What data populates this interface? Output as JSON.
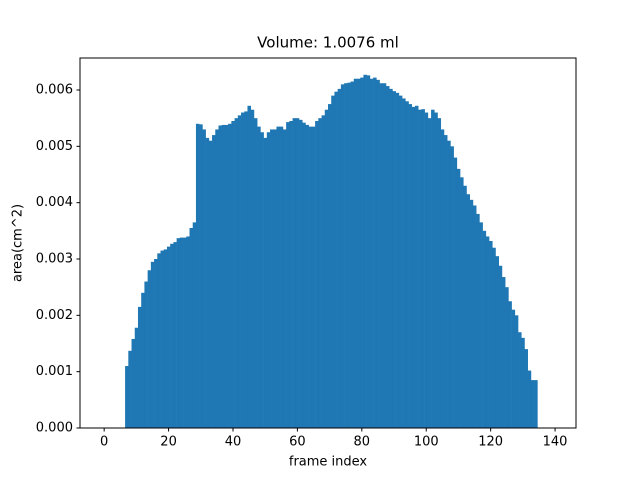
{
  "chart_data": {
    "type": "bar",
    "title": "Volume: 1.0076 ml",
    "xlabel": "frame index",
    "ylabel": "area(cm^2)",
    "color": "#1f77b4",
    "x": [
      0,
      1,
      2,
      3,
      4,
      5,
      6,
      7,
      8,
      9,
      10,
      11,
      12,
      13,
      14,
      15,
      16,
      17,
      18,
      19,
      20,
      21,
      22,
      23,
      24,
      25,
      26,
      27,
      28,
      29,
      30,
      31,
      32,
      33,
      34,
      35,
      36,
      37,
      38,
      39,
      40,
      41,
      42,
      43,
      44,
      45,
      46,
      47,
      48,
      49,
      50,
      51,
      52,
      53,
      54,
      55,
      56,
      57,
      58,
      59,
      60,
      61,
      62,
      63,
      64,
      65,
      66,
      67,
      68,
      69,
      70,
      71,
      72,
      73,
      74,
      75,
      76,
      77,
      78,
      79,
      80,
      81,
      82,
      83,
      84,
      85,
      86,
      87,
      88,
      89,
      90,
      91,
      92,
      93,
      94,
      95,
      96,
      97,
      98,
      99,
      100,
      101,
      102,
      103,
      104,
      105,
      106,
      107,
      108,
      109,
      110,
      111,
      112,
      113,
      114,
      115,
      116,
      117,
      118,
      119,
      120,
      121,
      122,
      123,
      124,
      125,
      126,
      127,
      128,
      129,
      130,
      131,
      132,
      133,
      134,
      135,
      136,
      137,
      138,
      139
    ],
    "values": [
      0,
      0,
      0,
      0,
      0,
      0,
      0,
      0.0011,
      0.00137,
      0.00158,
      0.00178,
      0.00215,
      0.0024,
      0.0026,
      0.0028,
      0.00295,
      0.003,
      0.0031,
      0.00315,
      0.00317,
      0.00322,
      0.00327,
      0.0033,
      0.00337,
      0.00338,
      0.00338,
      0.0034,
      0.00355,
      0.00365,
      0.0054,
      0.00539,
      0.0053,
      0.00515,
      0.0051,
      0.0052,
      0.0053,
      0.00537,
      0.00538,
      0.00538,
      0.0054,
      0.00545,
      0.0055,
      0.00555,
      0.0056,
      0.00562,
      0.00572,
      0.00565,
      0.0055,
      0.00535,
      0.00525,
      0.00515,
      0.00525,
      0.0053,
      0.0053,
      0.00535,
      0.00535,
      0.0053,
      0.00543,
      0.00545,
      0.0055,
      0.0055,
      0.00547,
      0.00542,
      0.00538,
      0.00535,
      0.00535,
      0.00545,
      0.0055,
      0.00555,
      0.00565,
      0.00575,
      0.0059,
      0.00597,
      0.00602,
      0.0061,
      0.00612,
      0.00613,
      0.00615,
      0.0062,
      0.0062,
      0.00622,
      0.00627,
      0.00626,
      0.0062,
      0.00622,
      0.00618,
      0.00612,
      0.00612,
      0.00607,
      0.00602,
      0.00598,
      0.00595,
      0.0059,
      0.00585,
      0.0058,
      0.00575,
      0.0057,
      0.00572,
      0.00565,
      0.00566,
      0.0056,
      0.0055,
      0.00565,
      0.0056,
      0.0055,
      0.0053,
      0.0052,
      0.0051,
      0.005,
      0.0048,
      0.0046,
      0.00445,
      0.0043,
      0.00415,
      0.00405,
      0.00395,
      0.0038,
      0.00365,
      0.0035,
      0.0034,
      0.00332,
      0.0032,
      0.00305,
      0.00288,
      0.00268,
      0.0025,
      0.00225,
      0.0021,
      0.002,
      0.0017,
      0.0016,
      0.0014,
      0.00102,
      0.00085,
      0.00085,
      0,
      0,
      0,
      0,
      0
    ],
    "xlim": [
      -7.5,
      146.5
    ],
    "xticks": [
      0,
      20,
      40,
      60,
      80,
      100,
      120,
      140
    ],
    "ylim": [
      0,
      0.006568
    ],
    "yticks": [
      {
        "value": 0,
        "label": "0.000"
      },
      {
        "value": 0.001,
        "label": "0.001"
      },
      {
        "value": 0.002,
        "label": "0.002"
      },
      {
        "value": 0.003,
        "label": "0.003"
      },
      {
        "value": 0.004,
        "label": "0.004"
      },
      {
        "value": 0.005,
        "label": "0.005"
      },
      {
        "value": 0.006,
        "label": "0.006"
      }
    ],
    "grid": false
  }
}
